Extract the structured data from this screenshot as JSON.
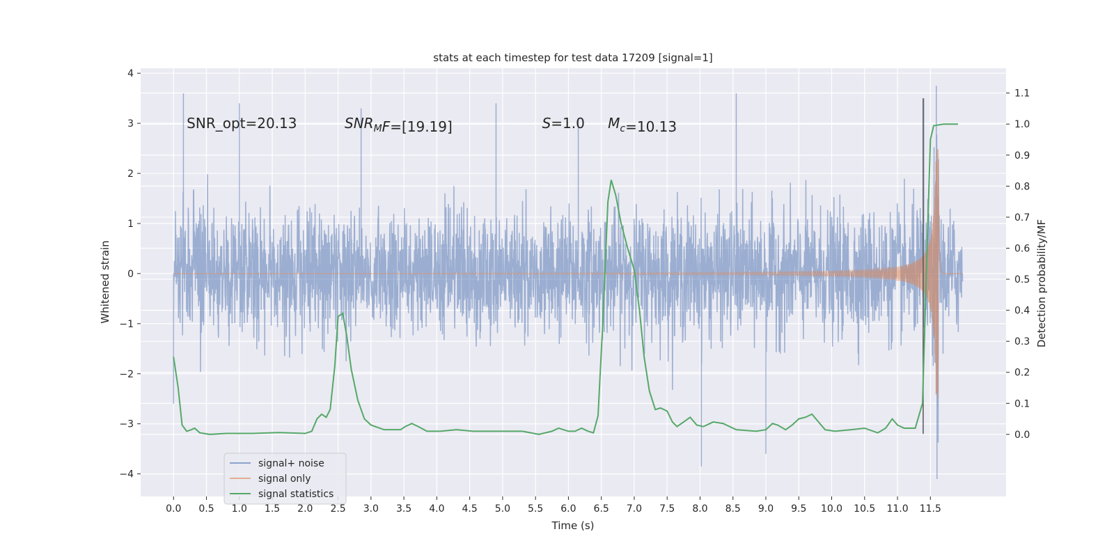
{
  "chart_data": {
    "type": "line",
    "title": "stats at each timestep for test data 17209 [signal=1]",
    "xlabel": "Time (s)",
    "ylabel": "Whitened strain",
    "y2label": "Detection probability/MF",
    "xlim": [
      -0.5,
      12.65
    ],
    "ylim": [
      -4.45,
      4.1
    ],
    "y2lim": [
      -0.2,
      1.18
    ],
    "x_ticks": [
      0.0,
      0.5,
      1.0,
      1.5,
      2.0,
      2.5,
      3.0,
      3.5,
      4.0,
      4.5,
      5.0,
      5.5,
      6.0,
      6.5,
      7.0,
      7.5,
      8.0,
      8.5,
      9.0,
      9.5,
      10.0,
      10.5,
      11.0,
      11.5
    ],
    "x_tick_labels": [
      "0.0",
      "0.5",
      "1.0",
      "1.5",
      "2.0",
      "2.5",
      "3.0",
      "3.5",
      "4.0",
      "4.5",
      "5.0",
      "5.5",
      "6.0",
      "6.5",
      "7.0",
      "7.5",
      "8.0",
      "8.5",
      "9.0",
      "9.5",
      "10.0",
      "10.5",
      "11.0",
      "11.5"
    ],
    "y_ticks": [
      -4,
      -3,
      -2,
      -1,
      0,
      1,
      2,
      3,
      4
    ],
    "y_tick_labels": [
      "−4",
      "−3",
      "−2",
      "−1",
      "0",
      "1",
      "2",
      "3",
      "4"
    ],
    "y2_ticks": [
      0.0,
      0.1,
      0.2,
      0.3,
      0.4,
      0.5,
      0.6,
      0.7,
      0.8,
      0.9,
      1.0,
      1.1
    ],
    "y2_tick_labels": [
      "0.0",
      "0.1",
      "0.2",
      "0.3",
      "0.4",
      "0.5",
      "0.6",
      "0.7",
      "0.8",
      "0.9",
      "1.0",
      "1.1"
    ],
    "grid": true,
    "legend_position": "bottom-left",
    "annotations": [
      {
        "parts": [
          {
            "text": "SNR_opt=20.13",
            "style": "normal"
          }
        ],
        "x": 0.2,
        "y": 3.0
      },
      {
        "parts": [
          {
            "text": "SNR",
            "style": "italic"
          },
          {
            "text": "M",
            "style": "italic-sub"
          },
          {
            "text": "F",
            "style": "italic"
          },
          {
            "text": "=[19.19]",
            "style": "normal"
          }
        ],
        "x": 2.6,
        "y": 3.0
      },
      {
        "parts": [
          {
            "text": "S",
            "style": "italic"
          },
          {
            "text": "=1.0",
            "style": "normal"
          }
        ],
        "x": 5.6,
        "y": 3.0
      },
      {
        "parts": [
          {
            "text": "M",
            "style": "italic"
          },
          {
            "text": "c",
            "style": "italic-sub"
          },
          {
            "text": "=10.13",
            "style": "normal"
          }
        ],
        "x": 6.6,
        "y": 3.0
      }
    ],
    "vertical_marker": {
      "x": 11.39,
      "y_range": [
        -3.2,
        3.5
      ],
      "color": "#555555"
    },
    "series": [
      {
        "name": "signal+ noise",
        "axis": "left",
        "color": "#4c72b0",
        "kind": "noise",
        "x_range": [
          0.0,
          11.99
        ],
        "envelope_std": 0.62,
        "extremes": [
          [
            0.15,
            3.6
          ],
          [
            1.0,
            3.4
          ],
          [
            2.85,
            3.3
          ],
          [
            4.9,
            3.4
          ],
          [
            6.15,
            3.1
          ],
          [
            8.55,
            3.6
          ],
          [
            9.0,
            -3.6
          ],
          [
            8.02,
            -3.85
          ],
          [
            11.59,
            3.75
          ],
          [
            11.6,
            -4.1
          ],
          [
            11.4,
            3.5
          ],
          [
            0.0,
            -2.6
          ]
        ]
      },
      {
        "name": "signal only",
        "axis": "left",
        "color": "#dd8452",
        "kind": "chirp",
        "x_range": [
          0.0,
          11.99
        ],
        "merger_time": 11.62,
        "peak_amplitude": 2.5
      },
      {
        "name": "signal statistics",
        "axis": "right",
        "color": "#55a868",
        "kind": "line",
        "points": [
          [
            0.0,
            0.25
          ],
          [
            0.07,
            0.15
          ],
          [
            0.13,
            0.03
          ],
          [
            0.2,
            0.01
          ],
          [
            0.27,
            0.015
          ],
          [
            0.32,
            0.02
          ],
          [
            0.4,
            0.005
          ],
          [
            0.55,
            0.0
          ],
          [
            0.8,
            0.003
          ],
          [
            1.2,
            0.003
          ],
          [
            1.6,
            0.006
          ],
          [
            2.0,
            0.003
          ],
          [
            2.1,
            0.01
          ],
          [
            2.18,
            0.05
          ],
          [
            2.25,
            0.065
          ],
          [
            2.32,
            0.055
          ],
          [
            2.38,
            0.08
          ],
          [
            2.45,
            0.22
          ],
          [
            2.5,
            0.38
          ],
          [
            2.57,
            0.39
          ],
          [
            2.63,
            0.32
          ],
          [
            2.7,
            0.21
          ],
          [
            2.8,
            0.11
          ],
          [
            2.9,
            0.05
          ],
          [
            3.0,
            0.03
          ],
          [
            3.2,
            0.015
          ],
          [
            3.45,
            0.015
          ],
          [
            3.52,
            0.025
          ],
          [
            3.62,
            0.035
          ],
          [
            3.72,
            0.025
          ],
          [
            3.85,
            0.01
          ],
          [
            4.05,
            0.01
          ],
          [
            4.3,
            0.015
          ],
          [
            4.55,
            0.01
          ],
          [
            5.0,
            0.01
          ],
          [
            5.3,
            0.01
          ],
          [
            5.55,
            0.0
          ],
          [
            5.75,
            0.01
          ],
          [
            5.85,
            0.02
          ],
          [
            6.0,
            0.01
          ],
          [
            6.1,
            0.01
          ],
          [
            6.2,
            0.02
          ],
          [
            6.3,
            0.01
          ],
          [
            6.38,
            0.005
          ],
          [
            6.45,
            0.06
          ],
          [
            6.52,
            0.35
          ],
          [
            6.6,
            0.75
          ],
          [
            6.65,
            0.82
          ],
          [
            6.72,
            0.77
          ],
          [
            6.8,
            0.68
          ],
          [
            6.9,
            0.6
          ],
          [
            7.0,
            0.53
          ],
          [
            7.08,
            0.4
          ],
          [
            7.15,
            0.25
          ],
          [
            7.23,
            0.14
          ],
          [
            7.32,
            0.08
          ],
          [
            7.4,
            0.085
          ],
          [
            7.5,
            0.075
          ],
          [
            7.58,
            0.04
          ],
          [
            7.65,
            0.025
          ],
          [
            7.75,
            0.04
          ],
          [
            7.85,
            0.055
          ],
          [
            7.95,
            0.03
          ],
          [
            8.05,
            0.025
          ],
          [
            8.2,
            0.04
          ],
          [
            8.35,
            0.035
          ],
          [
            8.55,
            0.015
          ],
          [
            8.85,
            0.01
          ],
          [
            9.0,
            0.015
          ],
          [
            9.1,
            0.035
          ],
          [
            9.18,
            0.03
          ],
          [
            9.3,
            0.015
          ],
          [
            9.4,
            0.03
          ],
          [
            9.5,
            0.05
          ],
          [
            9.6,
            0.055
          ],
          [
            9.7,
            0.065
          ],
          [
            9.8,
            0.04
          ],
          [
            9.9,
            0.015
          ],
          [
            10.05,
            0.01
          ],
          [
            10.3,
            0.015
          ],
          [
            10.5,
            0.02
          ],
          [
            10.7,
            0.005
          ],
          [
            10.82,
            0.02
          ],
          [
            10.92,
            0.05
          ],
          [
            11.0,
            0.03
          ],
          [
            11.1,
            0.02
          ],
          [
            11.27,
            0.02
          ],
          [
            11.38,
            0.1
          ],
          [
            11.45,
            0.6
          ],
          [
            11.5,
            0.95
          ],
          [
            11.55,
            0.995
          ],
          [
            11.7,
            1.0
          ],
          [
            11.92,
            1.0
          ]
        ]
      }
    ]
  },
  "legend": {
    "items": [
      {
        "label": "signal+ noise",
        "color": "#4c72b0"
      },
      {
        "label": "signal only",
        "color": "#dd8452"
      },
      {
        "label": "signal statistics",
        "color": "#55a868"
      }
    ]
  },
  "colors": {
    "plot_background": "#eaeaf2",
    "grid": "#ffffff",
    "text": "#262626"
  }
}
